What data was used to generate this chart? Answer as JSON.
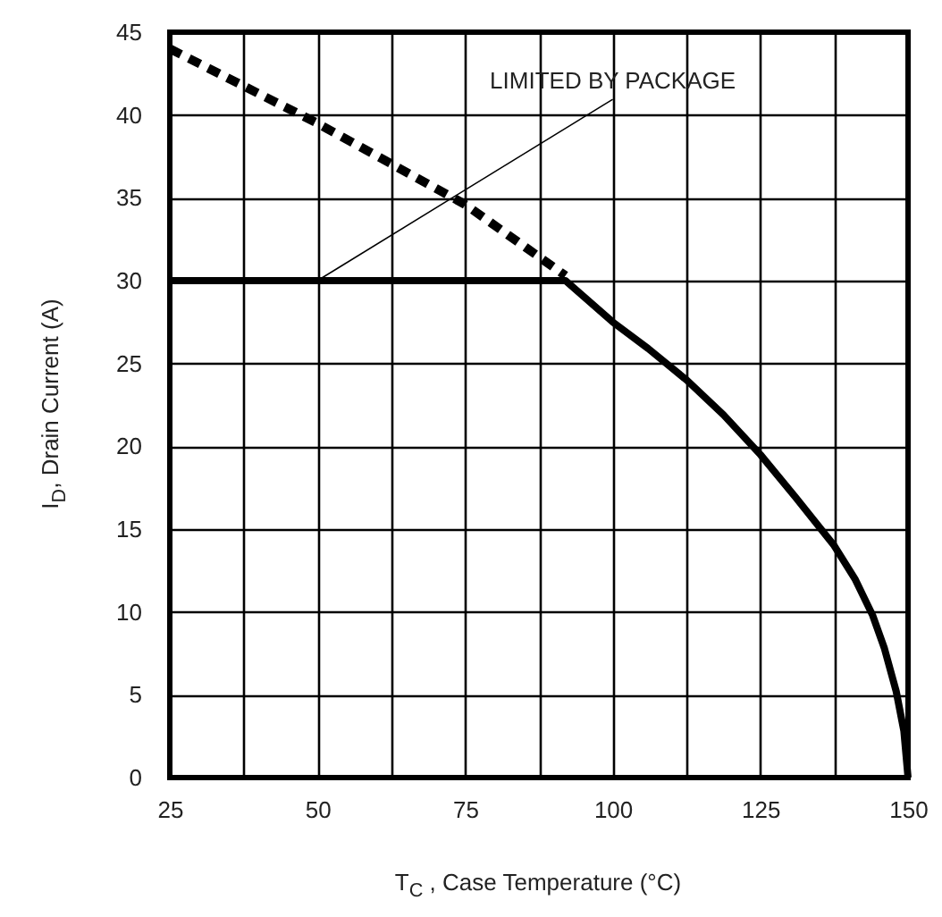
{
  "chart_data": {
    "type": "line",
    "xlabel": "T$_{C}$ , Case Temperature (°C)",
    "ylabel": "I$_{D}$, Drain Current (A)",
    "xlim": [
      25,
      150
    ],
    "ylim": [
      0,
      45
    ],
    "xticks": [
      25,
      {
        "value": 37.5,
        "label": null
      },
      50,
      {
        "value": 62.5,
        "label": null
      },
      75,
      {
        "value": 87.5,
        "label": null
      },
      100,
      {
        "value": 112.5,
        "label": null
      },
      125,
      {
        "value": 137.5,
        "label": null
      },
      150
    ],
    "yticks": [
      0,
      5,
      10,
      15,
      20,
      25,
      30,
      35,
      40,
      45
    ],
    "grid": true,
    "series": [
      {
        "color": "#000000",
        "line_style": "solid",
        "x": [
          25,
          92,
          100,
          106,
          112.5,
          118.75,
          125,
          131,
          137.5,
          141,
          144,
          146,
          148,
          149.3,
          150
        ],
        "values": [
          30,
          30,
          27.5,
          25.9,
          24,
          21.9,
          19.5,
          16.9,
          14,
          12,
          9.8,
          7.8,
          5.2,
          2.8,
          0
        ]
      },
      {
        "color": "#000000",
        "line_style": "dashed",
        "x": [
          25,
          50,
          75,
          92
        ],
        "values": [
          44,
          39.5,
          34.6,
          30.3
        ]
      }
    ],
    "annotations": [
      {
        "text": "LIMITED BY PACKAGE",
        "x": 50,
        "y": 30
      }
    ]
  }
}
